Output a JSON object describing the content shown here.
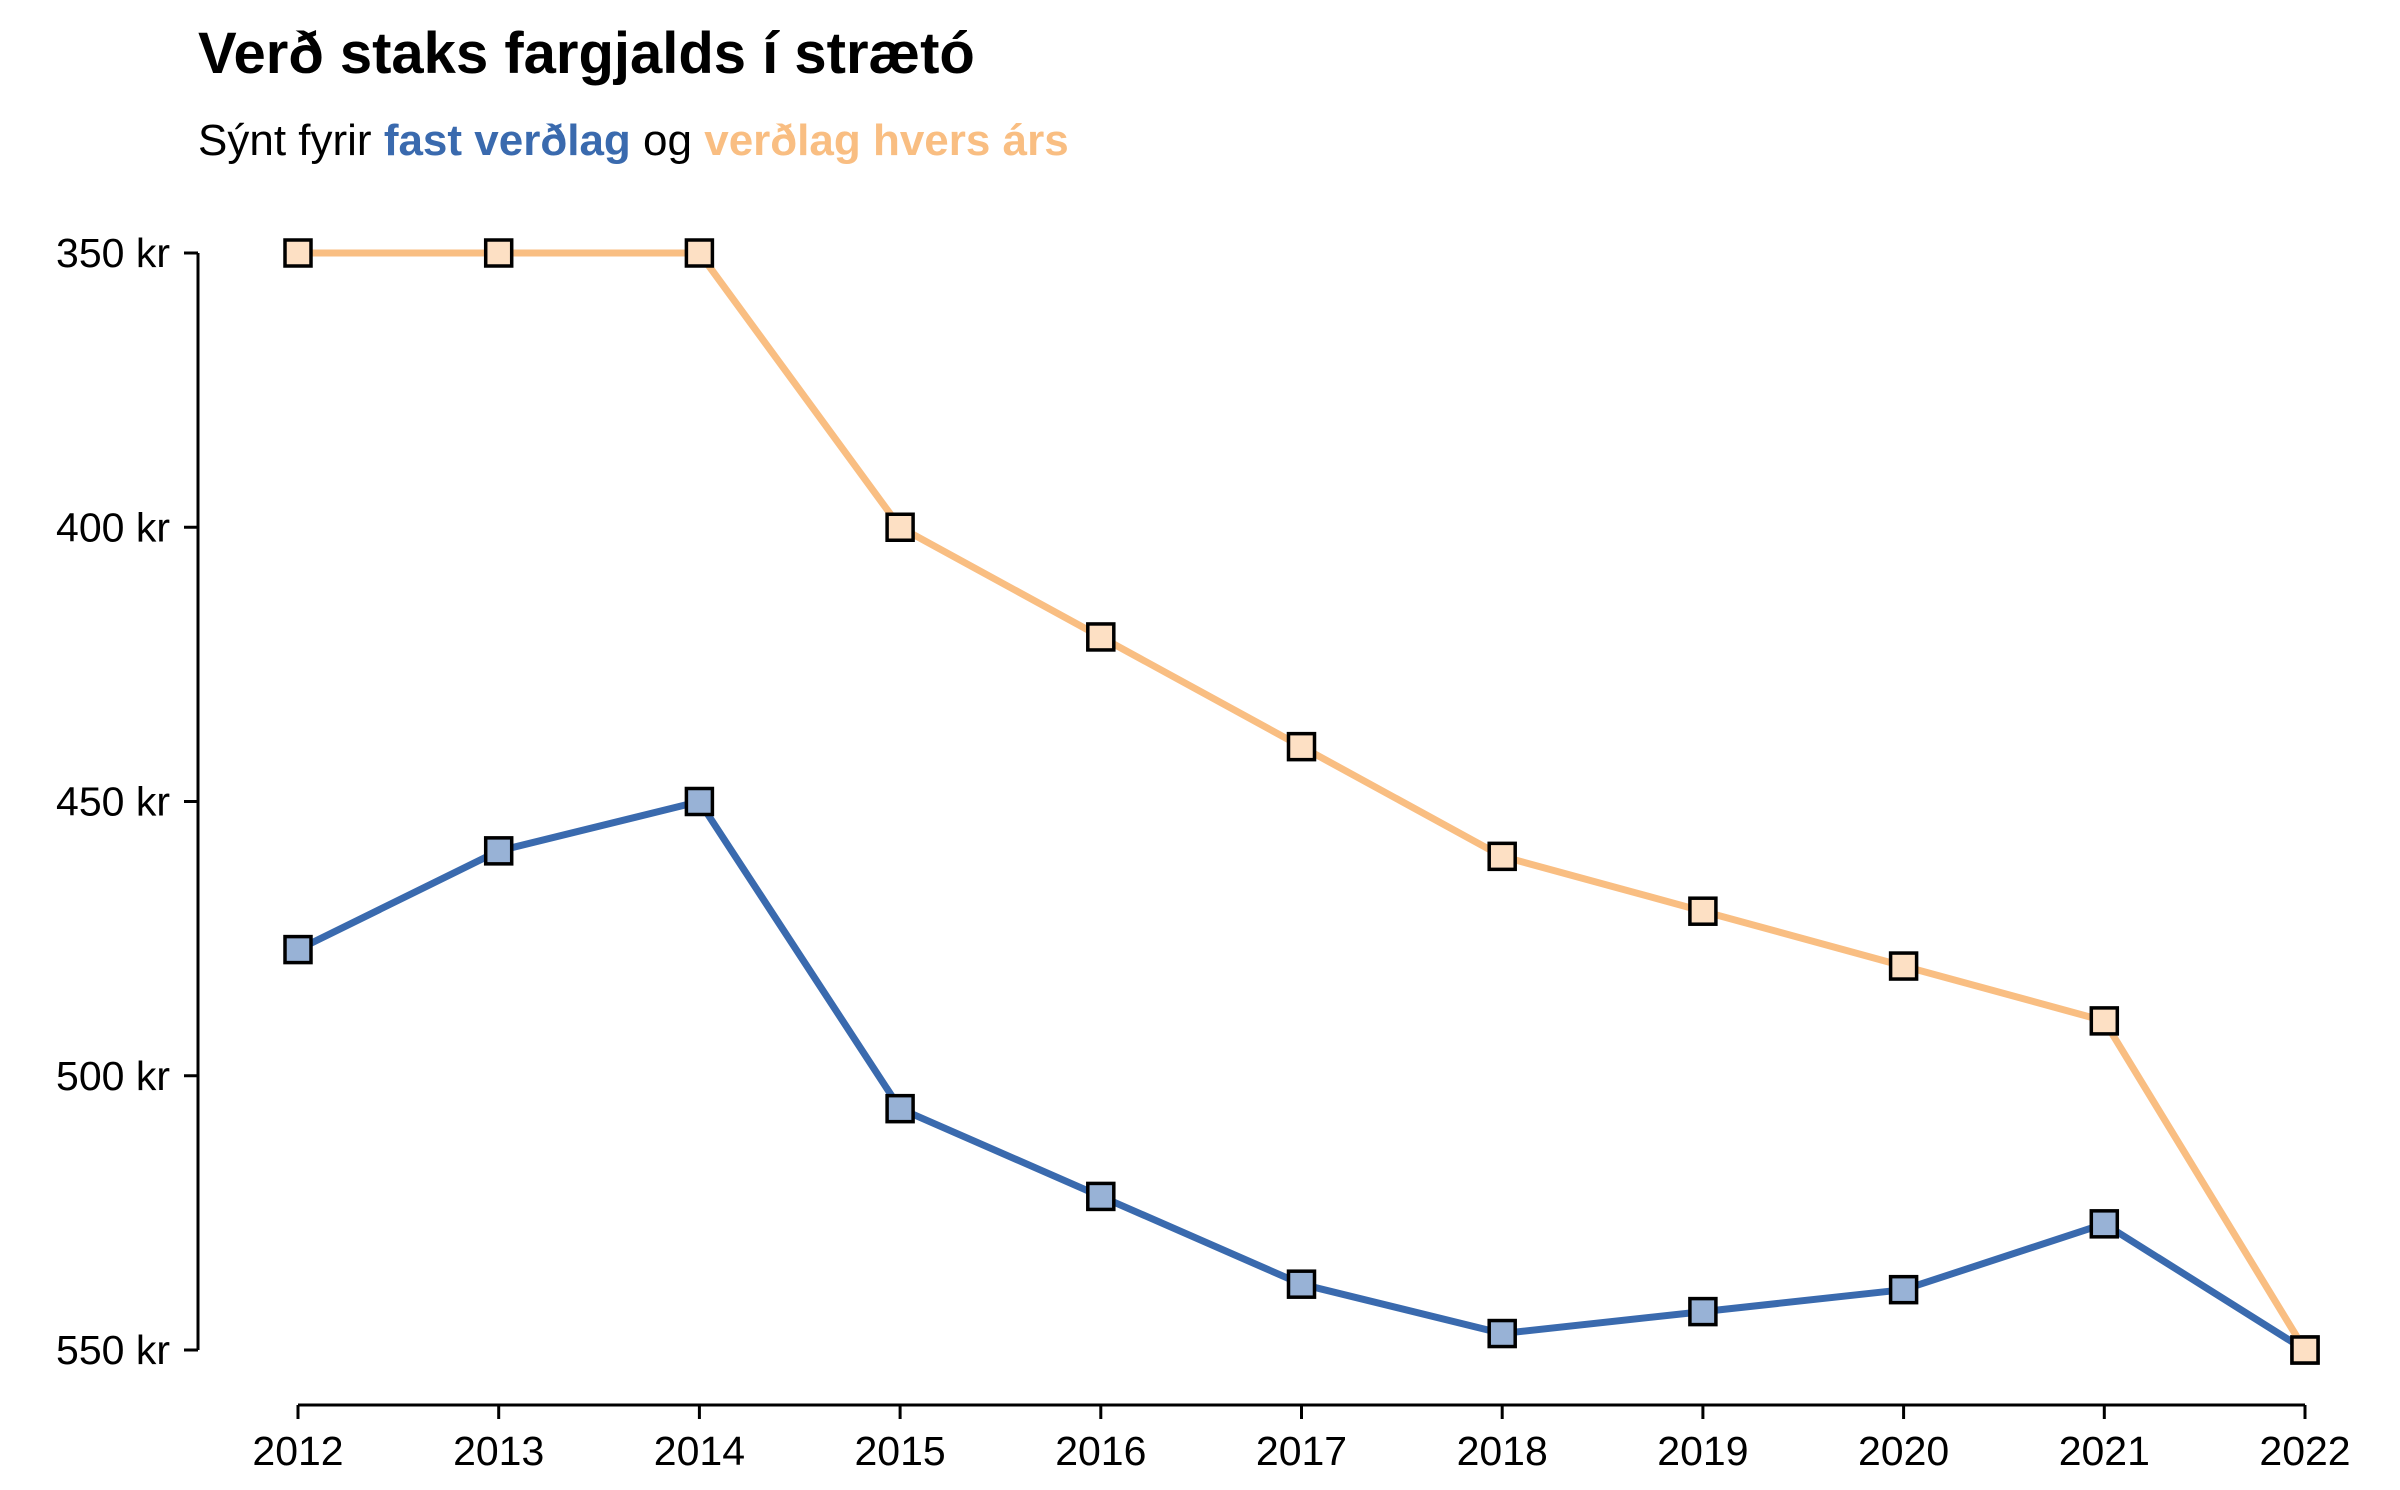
{
  "chart_data": {
    "type": "line",
    "title": "Verð staks fargjalds í strætó",
    "subtitle": {
      "prefix": "Sýnt fyrir",
      "series_a": "fast verðlag",
      "connector": "og",
      "series_b": "verðlag hvers árs"
    },
    "x": [
      2012,
      2013,
      2014,
      2015,
      2016,
      2017,
      2018,
      2019,
      2020,
      2021,
      2022
    ],
    "x_tick_labels": [
      "2012",
      "2013",
      "2014",
      "2015",
      "2016",
      "2017",
      "2018",
      "2019",
      "2020",
      "2021",
      "2022"
    ],
    "y_tick_values": [
      350,
      400,
      450,
      500,
      550
    ],
    "y_tick_labels": [
      "350 kr",
      "400 kr",
      "450 kr",
      "500 kr",
      "550 kr"
    ],
    "ylim": [
      350,
      550
    ],
    "y_axis_reversed": true,
    "xlabel": "",
    "ylabel": "",
    "grid": false,
    "legend": "in subtitle",
    "series": [
      {
        "name": "fast verðlag",
        "color": "#3a6aae",
        "marker_fill": "#98b2d6",
        "values": [
          477,
          459,
          450,
          506,
          522,
          538,
          547,
          543,
          539,
          527,
          550
        ]
      },
      {
        "name": "verðlag hvers árs",
        "color": "#f9be82",
        "marker_fill": "#fde0c4",
        "values": [
          350,
          350,
          350,
          400,
          420,
          440,
          460,
          470,
          480,
          490,
          550
        ]
      }
    ]
  }
}
